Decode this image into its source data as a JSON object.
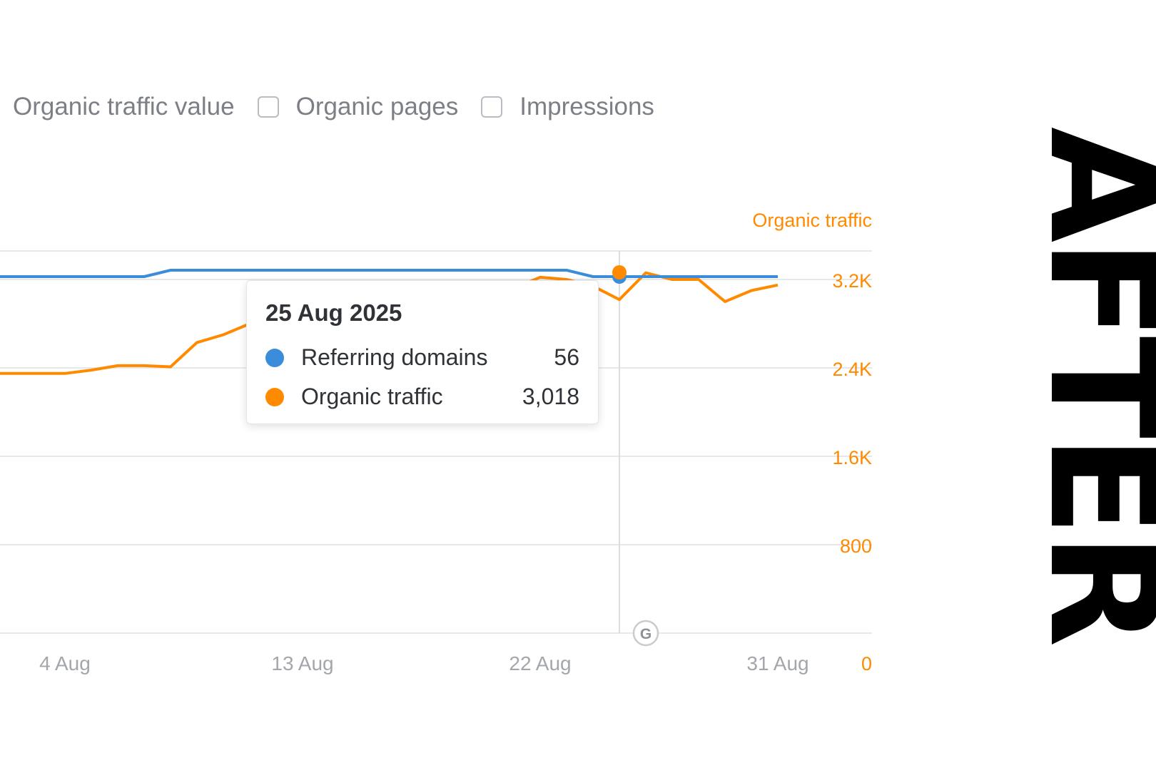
{
  "metric_toggles": [
    {
      "label": "Organic traffic value",
      "has_checkbox": false,
      "checked": false
    },
    {
      "label": "Organic pages",
      "has_checkbox": true,
      "checked": false
    },
    {
      "label": "Impressions",
      "has_checkbox": true,
      "checked": false
    }
  ],
  "tooltip": {
    "date": "25 Aug 2025",
    "rows": [
      {
        "label": "Referring domains",
        "value": "56",
        "color": "#3b8ddb"
      },
      {
        "label": "Organic traffic",
        "value": "3,018",
        "color": "#ff8a00"
      }
    ]
  },
  "google_update_marker": {
    "label": "G",
    "date": "26 Aug"
  },
  "after_label": "AFTER",
  "colors": {
    "referring_domains": "#3b8ddb",
    "organic_traffic": "#ff8a00",
    "grid": "#e7e8ea",
    "tick_text": "#a3a6ac"
  },
  "chart_data": {
    "type": "line",
    "x_range": [
      "1 Aug",
      "31 Aug"
    ],
    "x_ticks": [
      "4 Aug",
      "13 Aug",
      "22 Aug",
      "31 Aug"
    ],
    "right_axis": {
      "title": "Organic traffic",
      "ticks": [
        "0",
        "800",
        "1.6K",
        "2.4K",
        "3.2K"
      ],
      "tick_values": [
        0,
        800,
        1600,
        2400,
        3200
      ],
      "ylim": [
        0,
        3200
      ]
    },
    "grid": true,
    "hover_date": "25 Aug",
    "series": [
      {
        "name": "Referring domains",
        "axis": "left",
        "x": [
          "1 Aug",
          "2 Aug",
          "3 Aug",
          "4 Aug",
          "5 Aug",
          "6 Aug",
          "7 Aug",
          "8 Aug",
          "9 Aug",
          "10 Aug",
          "11 Aug",
          "12 Aug",
          "13 Aug",
          "14 Aug",
          "15 Aug",
          "16 Aug",
          "17 Aug",
          "18 Aug",
          "19 Aug",
          "20 Aug",
          "21 Aug",
          "22 Aug",
          "23 Aug",
          "24 Aug",
          "25 Aug",
          "26 Aug",
          "27 Aug",
          "28 Aug",
          "29 Aug",
          "30 Aug",
          "31 Aug"
        ],
        "values": [
          56,
          56,
          56,
          56,
          56,
          56,
          56,
          57,
          57,
          57,
          57,
          57,
          57,
          57,
          57,
          57,
          57,
          57,
          57,
          57,
          57,
          57,
          57,
          56,
          56,
          56,
          56,
          56,
          56,
          56,
          56
        ]
      },
      {
        "name": "Organic traffic",
        "axis": "right",
        "x": [
          "1 Aug",
          "2 Aug",
          "3 Aug",
          "4 Aug",
          "5 Aug",
          "6 Aug",
          "7 Aug",
          "8 Aug",
          "9 Aug",
          "10 Aug",
          "11 Aug",
          "12 Aug",
          "13 Aug",
          "14 Aug",
          "15 Aug",
          "16 Aug",
          "17 Aug",
          "18 Aug",
          "19 Aug",
          "20 Aug",
          "21 Aug",
          "22 Aug",
          "23 Aug",
          "24 Aug",
          "25 Aug",
          "26 Aug",
          "27 Aug",
          "28 Aug",
          "29 Aug",
          "30 Aug",
          "31 Aug"
        ],
        "values": [
          2350,
          2350,
          2350,
          2350,
          2380,
          2420,
          2420,
          2410,
          2630,
          2700,
          2800,
          2900,
          2950,
          3000,
          3050,
          3080,
          3100,
          3110,
          3120,
          3150,
          3120,
          3220,
          3200,
          3140,
          3018,
          3260,
          3200,
          3200,
          3000,
          3100,
          3150
        ]
      }
    ]
  }
}
